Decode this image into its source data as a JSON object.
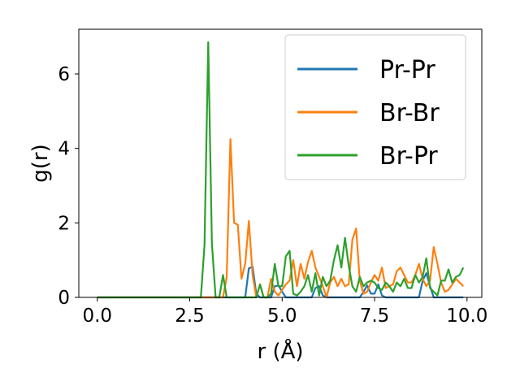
{
  "chart_data": {
    "type": "line",
    "title": "",
    "xlabel": "r (Å)",
    "ylabel": "g(r)",
    "xlim": [
      -0.5,
      10.4
    ],
    "ylim": [
      0,
      7.2
    ],
    "xticks": [
      0,
      2.5,
      5,
      7.5,
      10
    ],
    "xtick_labels": [
      "0.0",
      "2.5",
      "5.0",
      "7.5",
      "10.0"
    ],
    "yticks": [
      0,
      2,
      4,
      6
    ],
    "ytick_labels": [
      "0",
      "2",
      "4",
      "6"
    ],
    "grid": false,
    "legend": "top-right",
    "series": [
      {
        "name": "Pr-Pr",
        "color": "#1f77b4",
        "x": [
          0.0,
          4.0,
          4.1,
          4.2,
          4.3,
          4.4,
          4.5,
          4.6,
          4.7,
          4.8,
          4.9,
          5.0,
          5.1,
          5.8,
          5.9,
          6.0,
          6.1,
          6.2,
          7.1,
          7.2,
          7.3,
          7.4,
          7.5,
          7.6,
          7.7,
          7.8,
          7.9,
          8.7,
          8.8,
          8.9,
          9.0,
          9.1,
          9.9
        ],
        "values": [
          0,
          0,
          0.78,
          0.82,
          0.1,
          0,
          0,
          0,
          0,
          0.3,
          0.32,
          0.15,
          0,
          0,
          0.25,
          0.3,
          0.05,
          0,
          0,
          0.15,
          0.32,
          0.1,
          0.1,
          0.35,
          0.05,
          0,
          0,
          0,
          0.45,
          0.65,
          0.3,
          0,
          0
        ]
      },
      {
        "name": "Br-Br",
        "color": "#ff7f0e",
        "x": [
          0.0,
          3.4,
          3.5,
          3.6,
          3.7,
          3.8,
          3.9,
          4.0,
          4.1,
          4.2,
          4.3,
          4.4,
          4.5,
          4.6,
          4.7,
          4.8,
          4.9,
          5.0,
          5.1,
          5.2,
          5.3,
          5.4,
          5.5,
          5.6,
          5.7,
          5.8,
          5.9,
          6.0,
          6.1,
          6.2,
          6.3,
          6.4,
          6.5,
          6.6,
          6.7,
          6.8,
          6.9,
          7.0,
          7.1,
          7.2,
          7.3,
          7.4,
          7.5,
          7.6,
          7.7,
          7.8,
          7.9,
          8.0,
          8.1,
          8.2,
          8.3,
          8.4,
          8.5,
          8.6,
          8.7,
          8.8,
          8.9,
          9.0,
          9.1,
          9.2,
          9.3,
          9.4,
          9.5,
          9.6,
          9.7,
          9.8,
          9.9
        ],
        "values": [
          0,
          0,
          0.55,
          4.25,
          2.0,
          1.95,
          0.5,
          0.9,
          2.05,
          0.6,
          0,
          0.35,
          0,
          0,
          0.5,
          0.15,
          0.05,
          0.2,
          0.35,
          0.45,
          1.0,
          0.3,
          0.9,
          0.5,
          0.95,
          1.25,
          0.8,
          0.55,
          0.3,
          0,
          0.4,
          0.55,
          0.3,
          0.5,
          0.3,
          0.35,
          1.55,
          1.85,
          0.45,
          0.1,
          0.15,
          0.4,
          0.6,
          0.45,
          0.8,
          0.25,
          0.3,
          0.35,
          0.7,
          0.8,
          0.6,
          0.4,
          0.4,
          0.6,
          0.9,
          0.5,
          0.3,
          0.45,
          1.35,
          0.9,
          0.4,
          0.15,
          0.2,
          0.35,
          0.5,
          0.4,
          0.3
        ]
      },
      {
        "name": "Br-Pr",
        "color": "#2ca02c",
        "x": [
          0.0,
          2.8,
          2.9,
          3.0,
          3.1,
          3.2,
          3.3,
          3.4,
          3.5,
          4.3,
          4.4,
          4.5,
          4.6,
          4.7,
          4.8,
          4.9,
          5.0,
          5.1,
          5.2,
          5.3,
          5.4,
          5.5,
          5.6,
          5.7,
          5.8,
          5.9,
          6.0,
          6.1,
          6.2,
          6.3,
          6.4,
          6.5,
          6.6,
          6.7,
          6.8,
          6.9,
          7.0,
          7.1,
          7.2,
          7.3,
          7.4,
          7.5,
          7.6,
          7.7,
          7.8,
          7.9,
          8.0,
          8.1,
          8.2,
          8.3,
          8.4,
          8.5,
          8.6,
          8.7,
          8.8,
          8.9,
          9.0,
          9.1,
          9.2,
          9.3,
          9.4,
          9.5,
          9.6,
          9.7,
          9.8,
          9.9
        ],
        "values": [
          0,
          0,
          1.4,
          6.85,
          1.45,
          0,
          0,
          0.6,
          0,
          0,
          0.35,
          0,
          0,
          0.1,
          0.9,
          0.3,
          0.3,
          1.1,
          1.25,
          0.1,
          0.05,
          0.15,
          0.3,
          0.6,
          0.15,
          0.65,
          0.05,
          0.55,
          0.3,
          0.45,
          1.0,
          1.4,
          0.8,
          1.6,
          0.85,
          0.3,
          0.15,
          0.55,
          0.3,
          0.4,
          0.45,
          0.4,
          0.25,
          0.2,
          0.4,
          0.3,
          0.15,
          0.4,
          0.3,
          0.5,
          0.25,
          0.25,
          0.6,
          0.4,
          0.55,
          1.05,
          0.25,
          0.15,
          0.05,
          0.45,
          0.45,
          0.75,
          0.4,
          0.55,
          0.6,
          0.8
        ]
      }
    ]
  }
}
